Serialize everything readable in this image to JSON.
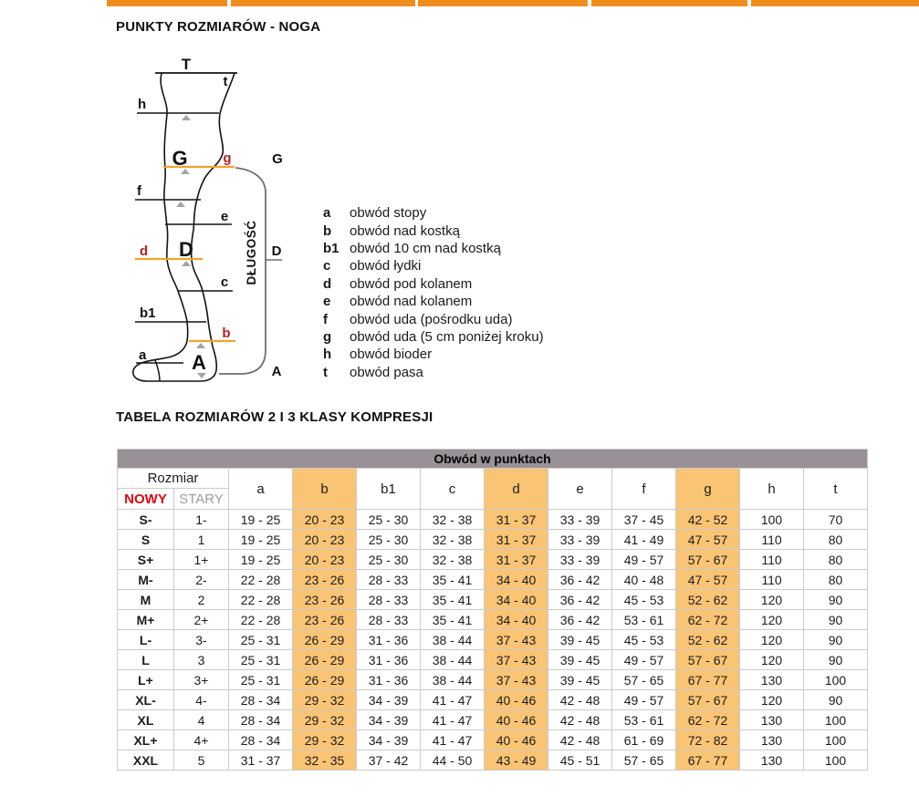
{
  "page": {
    "title": "PUNKTY ROZMIARÓW - NOGA",
    "table_section_title": "TABELA ROZMIARÓW 2 I 3 KLASY KOMPRESJI"
  },
  "colors": {
    "tab_orange": "#EF8E1E",
    "highlight_orange": "#FAC475",
    "diagram_orange": "#F0A230",
    "header_mauve": "#9A9097",
    "label_red": "#B3231E",
    "new_size_red": "#E30613",
    "old_size_gray": "#9C9C9C"
  },
  "diagram": {
    "length_label": "DŁUGOŚĆ",
    "labels": {
      "T": "T",
      "t": "t",
      "h": "h",
      "G": "G",
      "g": "g",
      "f": "f",
      "e": "e",
      "D": "D",
      "d": "d",
      "c": "c",
      "b1": "b1",
      "b": "b",
      "a": "a",
      "A": "A"
    },
    "bracket_labels": {
      "top": "G",
      "middle": "D",
      "bottom": "A"
    }
  },
  "legend": {
    "items": [
      {
        "key": "a",
        "label": "obwód stopy"
      },
      {
        "key": "b",
        "label": "obwód nad kostką"
      },
      {
        "key": "b1",
        "label": "obwód 10 cm nad kostką"
      },
      {
        "key": "c",
        "label": "obwód łydki"
      },
      {
        "key": "d",
        "label": "obwód pod kolanem"
      },
      {
        "key": "e",
        "label": "obwód nad kolanem"
      },
      {
        "key": "f",
        "label": "obwód uda (pośrodku uda)"
      },
      {
        "key": "g",
        "label": "obwód uda (5 cm poniżej kroku)"
      },
      {
        "key": "h",
        "label": "obwód bioder"
      },
      {
        "key": "t",
        "label": "obwód pasa"
      }
    ]
  },
  "size_table": {
    "header_title": "Obwód w punktach",
    "rozmiar_label": "Rozmiar",
    "new_label": "NOWY",
    "old_label": "STARY",
    "point_columns": [
      "a",
      "b",
      "b1",
      "c",
      "d",
      "e",
      "f",
      "g",
      "h",
      "t"
    ],
    "highlighted_columns": [
      "b",
      "d",
      "g"
    ],
    "rows": [
      {
        "new": "S-",
        "old": "1-",
        "values": [
          "19 - 25",
          "20 - 23",
          "25 - 30",
          "32 - 38",
          "31 - 37",
          "33 - 39",
          "37 - 45",
          "42 - 52",
          "100",
          "70"
        ]
      },
      {
        "new": "S",
        "old": "1",
        "values": [
          "19 - 25",
          "20 - 23",
          "25 - 30",
          "32 - 38",
          "31 - 37",
          "33 - 39",
          "41 - 49",
          "47 - 57",
          "110",
          "80"
        ]
      },
      {
        "new": "S+",
        "old": "1+",
        "values": [
          "19 - 25",
          "20 - 23",
          "25 - 30",
          "32 - 38",
          "31 - 37",
          "33 - 39",
          "49 - 57",
          "57 - 67",
          "110",
          "80"
        ]
      },
      {
        "new": "M-",
        "old": "2-",
        "values": [
          "22 - 28",
          "23 - 26",
          "28 - 33",
          "35 - 41",
          "34 - 40",
          "36 - 42",
          "40 - 48",
          "47 - 57",
          "110",
          "80"
        ]
      },
      {
        "new": "M",
        "old": "2",
        "values": [
          "22 - 28",
          "23 - 26",
          "28 - 33",
          "35 - 41",
          "34 - 40",
          "36 - 42",
          "45 - 53",
          "52 - 62",
          "120",
          "90"
        ]
      },
      {
        "new": "M+",
        "old": "2+",
        "values": [
          "22 - 28",
          "23 - 26",
          "28 - 33",
          "35 - 41",
          "34 - 40",
          "36 - 42",
          "53 - 61",
          "62 - 72",
          "120",
          "90"
        ]
      },
      {
        "new": "L-",
        "old": "3-",
        "values": [
          "25 - 31",
          "26 - 29",
          "31 - 36",
          "38 - 44",
          "37 - 43",
          "39 - 45",
          "45 - 53",
          "52 - 62",
          "120",
          "90"
        ]
      },
      {
        "new": "L",
        "old": "3",
        "values": [
          "25 - 31",
          "26 - 29",
          "31 - 36",
          "38 - 44",
          "37 - 43",
          "39 - 45",
          "49 - 57",
          "57 - 67",
          "120",
          "90"
        ]
      },
      {
        "new": "L+",
        "old": "3+",
        "values": [
          "25 - 31",
          "26 - 29",
          "31 - 36",
          "38 - 44",
          "37 - 43",
          "39 - 45",
          "57 - 65",
          "67 - 77",
          "130",
          "100"
        ]
      },
      {
        "new": "XL-",
        "old": "4-",
        "values": [
          "28 - 34",
          "29 - 32",
          "34 - 39",
          "41 - 47",
          "40 - 46",
          "42 - 48",
          "49 - 57",
          "57 - 67",
          "120",
          "90"
        ]
      },
      {
        "new": "XL",
        "old": "4",
        "values": [
          "28 - 34",
          "29 - 32",
          "34 - 39",
          "41 - 47",
          "40 - 46",
          "42 - 48",
          "53 - 61",
          "62 - 72",
          "130",
          "100"
        ]
      },
      {
        "new": "XL+",
        "old": "4+",
        "values": [
          "28 - 34",
          "29 - 32",
          "34 - 39",
          "41 - 47",
          "40 - 46",
          "42 - 48",
          "61 - 69",
          "72 - 82",
          "130",
          "100"
        ]
      },
      {
        "new": "XXL",
        "old": "5",
        "values": [
          "31 - 37",
          "32 - 35",
          "37 - 42",
          "44 - 50",
          "43 - 49",
          "45 - 51",
          "57 - 65",
          "67 - 77",
          "130",
          "100"
        ]
      }
    ]
  }
}
